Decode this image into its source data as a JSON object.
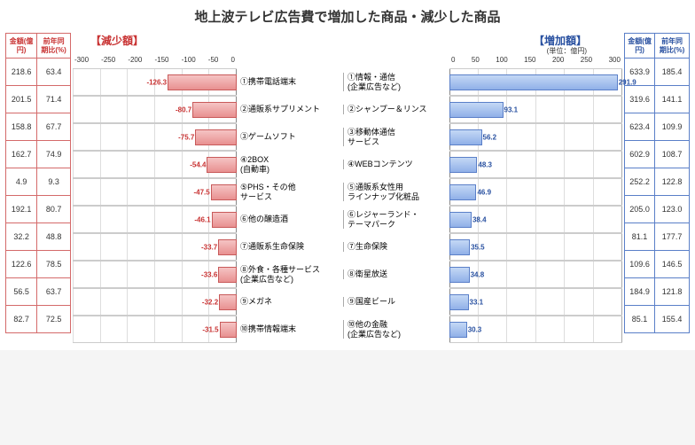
{
  "title": "地上波テレビ広告費で増加した商品・減少した商品",
  "decrease_header": "【減少額】",
  "increase_header": "【増加額】",
  "unit_label": "(単位：億円)",
  "left_table_headers": [
    "金額(億円)",
    "前年同期比(%)"
  ],
  "right_table_headers": [
    "金額(億円)",
    "前年同期比(%)"
  ],
  "axis_left": {
    "min": -300,
    "max": 0,
    "ticks": [
      "-300",
      "-250",
      "-200",
      "-150",
      "-100",
      "-50",
      "0"
    ]
  },
  "axis_right": {
    "min": 0,
    "max": 300,
    "ticks": [
      "0",
      "50",
      "100",
      "150",
      "200",
      "250",
      "300"
    ]
  },
  "rows": [
    {
      "rank": "①",
      "dec_cat": "携帯電話端末",
      "dec_val": -126.3,
      "dec_amt": "218.6",
      "dec_yoy": "63.4",
      "inc_cat": "情報・通信\n(企業広告など)",
      "inc_val": 291.9,
      "inc_amt": "633.9",
      "inc_yoy": "185.4"
    },
    {
      "rank": "②",
      "dec_cat": "通販系サプリメント",
      "dec_val": -80.7,
      "dec_amt": "201.5",
      "dec_yoy": "71.4",
      "inc_cat": "シャンプー＆リンス",
      "inc_val": 93.1,
      "inc_amt": "319.6",
      "inc_yoy": "141.1"
    },
    {
      "rank": "③",
      "dec_cat": "ゲームソフト",
      "dec_val": -75.7,
      "dec_amt": "158.8",
      "dec_yoy": "67.7",
      "inc_cat": "移動体通信\nサービス",
      "inc_val": 56.2,
      "inc_amt": "623.4",
      "inc_yoy": "109.9"
    },
    {
      "rank": "④",
      "dec_cat": "2BOX\n(自動車)",
      "dec_val": -54.4,
      "dec_amt": "162.7",
      "dec_yoy": "74.9",
      "inc_cat": "WEBコンテンツ",
      "inc_val": 48.3,
      "inc_amt": "602.9",
      "inc_yoy": "108.7"
    },
    {
      "rank": "⑤",
      "dec_cat": "PHS・その他\nサービス",
      "dec_val": -47.5,
      "dec_amt": "4.9",
      "dec_yoy": "9.3",
      "inc_cat": "通販系女性用\nラインナップ化粧品",
      "inc_val": 46.9,
      "inc_amt": "252.2",
      "inc_yoy": "122.8"
    },
    {
      "rank": "⑥",
      "dec_cat": "他の醸造酒",
      "dec_val": -46.1,
      "dec_amt": "192.1",
      "dec_yoy": "80.7",
      "inc_cat": "レジャーランド・\nテーマパーク",
      "inc_val": 38.4,
      "inc_amt": "205.0",
      "inc_yoy": "123.0"
    },
    {
      "rank": "⑦",
      "dec_cat": "通販系生命保険",
      "dec_val": -33.7,
      "dec_amt": "32.2",
      "dec_yoy": "48.8",
      "inc_cat": "生命保険",
      "inc_val": 35.5,
      "inc_amt": "81.1",
      "inc_yoy": "177.7"
    },
    {
      "rank": "⑧",
      "dec_cat": "外食・各種サービス\n(企業広告など)",
      "dec_val": -33.6,
      "dec_amt": "122.6",
      "dec_yoy": "78.5",
      "inc_cat": "衛星放送",
      "inc_val": 34.8,
      "inc_amt": "109.6",
      "inc_yoy": "146.5"
    },
    {
      "rank": "⑨",
      "dec_cat": "メガネ",
      "dec_val": -32.2,
      "dec_amt": "56.5",
      "dec_yoy": "63.7",
      "inc_cat": "国産ビール",
      "inc_val": 33.1,
      "inc_amt": "184.9",
      "inc_yoy": "121.8"
    },
    {
      "rank": "⑩",
      "dec_cat": "携帯情報端末",
      "dec_val": -31.5,
      "dec_amt": "82.7",
      "dec_yoy": "72.5",
      "inc_cat": "他の金融\n(企業広告など)",
      "inc_val": 30.3,
      "inc_amt": "85.1",
      "inc_yoy": "155.4"
    }
  ],
  "colors": {
    "dec_bar_top": "#f5c4c4",
    "dec_bar_bot": "#e89090",
    "dec_border": "#c85a5a",
    "dec_text": "#c83232",
    "inc_bar_top": "#c4d8f5",
    "inc_bar_bot": "#90b0e8",
    "inc_border": "#5a7fc8",
    "inc_text": "#2850a0"
  }
}
